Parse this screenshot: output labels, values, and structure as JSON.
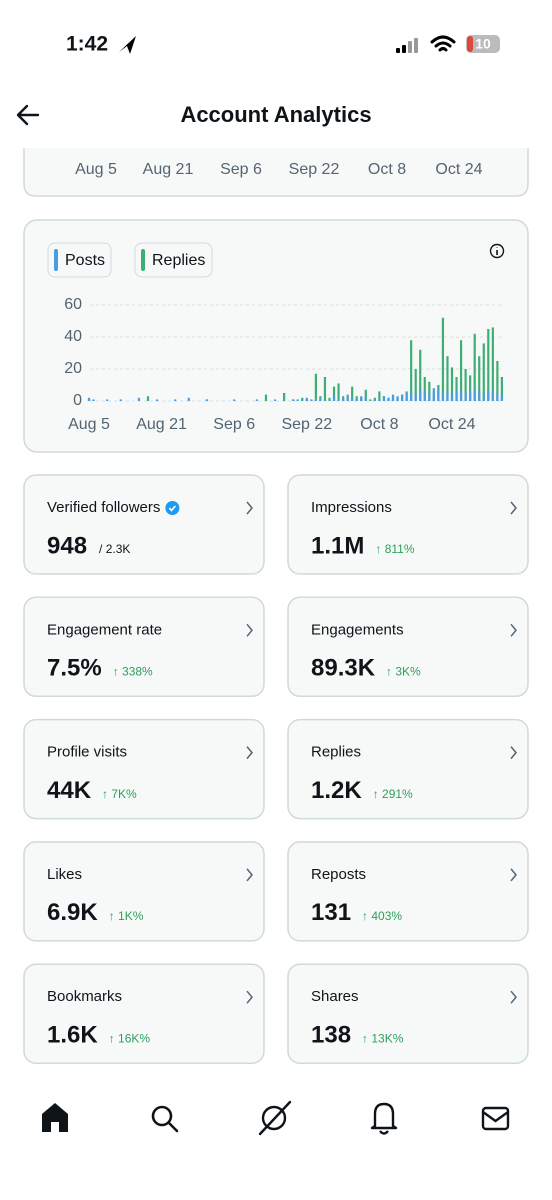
{
  "status_bar": {
    "time": "1:42",
    "battery": "10"
  },
  "header": {
    "title": "Account Analytics"
  },
  "top_chart": {
    "x_labels": [
      "Aug 5",
      "Aug 21",
      "Sep 6",
      "Sep 22",
      "Oct 8",
      "Oct 24"
    ]
  },
  "chart_data": {
    "type": "bar",
    "categories": [
      "Aug 5",
      null,
      null,
      null,
      null,
      null,
      null,
      null,
      null,
      null,
      null,
      null,
      null,
      null,
      null,
      null,
      "Aug 21",
      null,
      null,
      null,
      null,
      null,
      null,
      null,
      null,
      null,
      null,
      null,
      null,
      null,
      null,
      null,
      "Sep 6",
      null,
      null,
      null,
      null,
      null,
      null,
      null,
      null,
      null,
      null,
      null,
      null,
      null,
      null,
      null,
      "Sep 22",
      null,
      null,
      null,
      null,
      null,
      null,
      null,
      null,
      null,
      null,
      null,
      null,
      null,
      null,
      null,
      "Oct 8",
      null,
      null,
      null,
      null,
      null,
      null,
      null,
      null,
      null,
      null,
      null,
      null,
      null,
      null,
      null,
      "Oct 24",
      null,
      null,
      null,
      null,
      null,
      null,
      null,
      null,
      null,
      null,
      null
    ],
    "series": [
      {
        "name": "Replies",
        "color": "#3fae74",
        "values": [
          1,
          0,
          0,
          0,
          0,
          0,
          0,
          0,
          0,
          0,
          0,
          0,
          0,
          3,
          0,
          0,
          0,
          0,
          0,
          0,
          0,
          0,
          0,
          0,
          0,
          0,
          1,
          0,
          0,
          0,
          0,
          0,
          0,
          0,
          0,
          0,
          0,
          0,
          0,
          4,
          0,
          0,
          0,
          5,
          0,
          1,
          0,
          2,
          1,
          0,
          17,
          3,
          15,
          2,
          9,
          11,
          3,
          2,
          9,
          3,
          2,
          7,
          1,
          2,
          6,
          3,
          2,
          3,
          2,
          4,
          6,
          38,
          20,
          32,
          15,
          12,
          5,
          10,
          52,
          28,
          21,
          15,
          38,
          20,
          16,
          42,
          28,
          36,
          45,
          46,
          25,
          15
        ]
      },
      {
        "name": "Posts",
        "color": "#4a9de0",
        "values": [
          2,
          1,
          0,
          0,
          1,
          0,
          0,
          1,
          0,
          0,
          0,
          2,
          0,
          0,
          0,
          1,
          0,
          0,
          0,
          1,
          0,
          0,
          2,
          0,
          0,
          0,
          1,
          0,
          0,
          0,
          0,
          0,
          1,
          0,
          0,
          0,
          0,
          1,
          0,
          0,
          0,
          1,
          0,
          0,
          0,
          1,
          1,
          0,
          2,
          1,
          1,
          2,
          1,
          0,
          3,
          1,
          2,
          4,
          2,
          1,
          3,
          2,
          0,
          1,
          1,
          3,
          2,
          4,
          3,
          4,
          5,
          6,
          4,
          7,
          6,
          5,
          8,
          7,
          5,
          6,
          4,
          7,
          6,
          5,
          6,
          8,
          6,
          5,
          7,
          6,
          5,
          4
        ]
      }
    ],
    "ylim": [
      0,
      60
    ],
    "yticks": [
      0,
      20,
      40,
      60
    ],
    "grid": true
  },
  "metrics": [
    {
      "label": "Verified followers",
      "value": "948",
      "total": "/ 2.3K"
    },
    {
      "label": "Impressions",
      "value": "1.1M",
      "change": "↑ 811%"
    },
    {
      "label": "Engagement rate",
      "value": "7.5%",
      "change": "↑ 338%"
    },
    {
      "label": "Engagements",
      "value": "89.3K",
      "change": "↑ 3K%"
    },
    {
      "label": "Profile visits",
      "value": "44K",
      "change": "↑ 7K%"
    },
    {
      "label": "Replies",
      "value": "1.2K",
      "change": "↑ 291%"
    },
    {
      "label": "Likes",
      "value": "6.9K",
      "change": "↑ 1K%"
    },
    {
      "label": "Reposts",
      "value": "131",
      "change": "↑ 403%"
    },
    {
      "label": "Bookmarks",
      "value": "1.6K",
      "change": "↑ 16K%"
    },
    {
      "label": "Shares",
      "value": "138",
      "change": "↑ 13K%"
    }
  ]
}
